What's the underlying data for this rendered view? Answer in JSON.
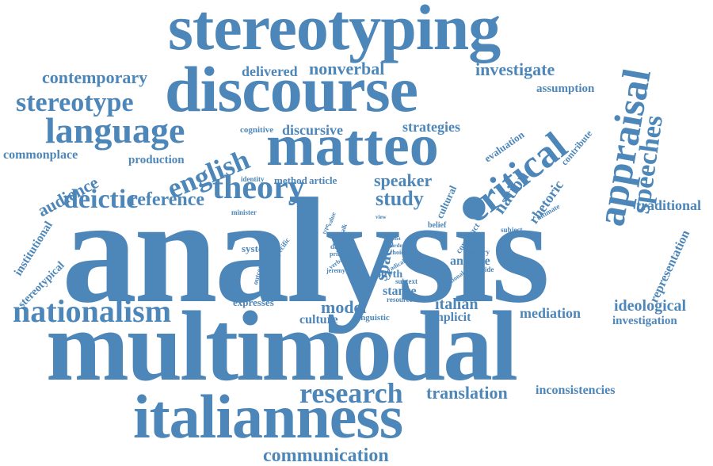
{
  "word_cloud": {
    "color": "#4d86b8",
    "background": "#ffffff",
    "words": {
      "analysis": "analysis",
      "multimodal": "multimodal",
      "italianness": "italianness",
      "stereotyping": "stereotyping",
      "discourse": "discourse",
      "matteo": "matteo",
      "critical": "critical",
      "appraisal": "appraisal",
      "language": "language",
      "nationalism": "nationalism",
      "stereotype": "stereotype",
      "theory": "theory",
      "english": "english",
      "deictic": "deictic",
      "speeches": "speeches",
      "research": "research",
      "communication": "communication",
      "contemporary": "contemporary",
      "nonverbal": "nonverbal",
      "investigate": "investigate",
      "delivered": "delivered",
      "assumption": "assumption",
      "commonplace": "commonplace",
      "audience": "audience",
      "production": "production",
      "reference": "reference",
      "strategies": "strategies",
      "discursive": "discursive",
      "cognitive": "cognitive",
      "identity": "identity",
      "method": "method",
      "article": "article",
      "speaker": "speaker",
      "study": "study",
      "nation": "nation",
      "rhetoric": "rhetoric",
      "contribute": "contribute",
      "evaluation": "evaluation",
      "cultural": "cultural",
      "traditional": "traditional",
      "ultimate": "ultimate",
      "minister": "minister",
      "value": "value",
      "type": "type",
      "talk": "talk",
      "view": "view",
      "belief": "belief",
      "power": "power",
      "construct": "construct",
      "country": "country",
      "subject": "subject",
      "pilot": "pilot",
      "order": "order",
      "choice": "choice",
      "system": "system",
      "specific": "specific",
      "data": "data",
      "prime": "prime",
      "space": "space",
      "radical": "radical",
      "verbal": "verbal",
      "jeremy": "jeremy",
      "outcome": "outcome",
      "analyse": "analyse",
      "myth": "myth",
      "national": "national",
      "provide": "provide",
      "subtext": "subtext",
      "stance": "stance",
      "resource": "resource",
      "expresses": "expresses",
      "model": "model",
      "italian": "italian",
      "implicit": "implicit",
      "culture": "culture",
      "linguistic": "linguistic",
      "mediation": "mediation",
      "ideological": "ideological",
      "investigation": "investigation",
      "representation": "representation",
      "institutional": "institutional",
      "stereotypical": "stereotypical",
      "translation": "translation",
      "inconsistencies": "inconsistencies"
    }
  }
}
